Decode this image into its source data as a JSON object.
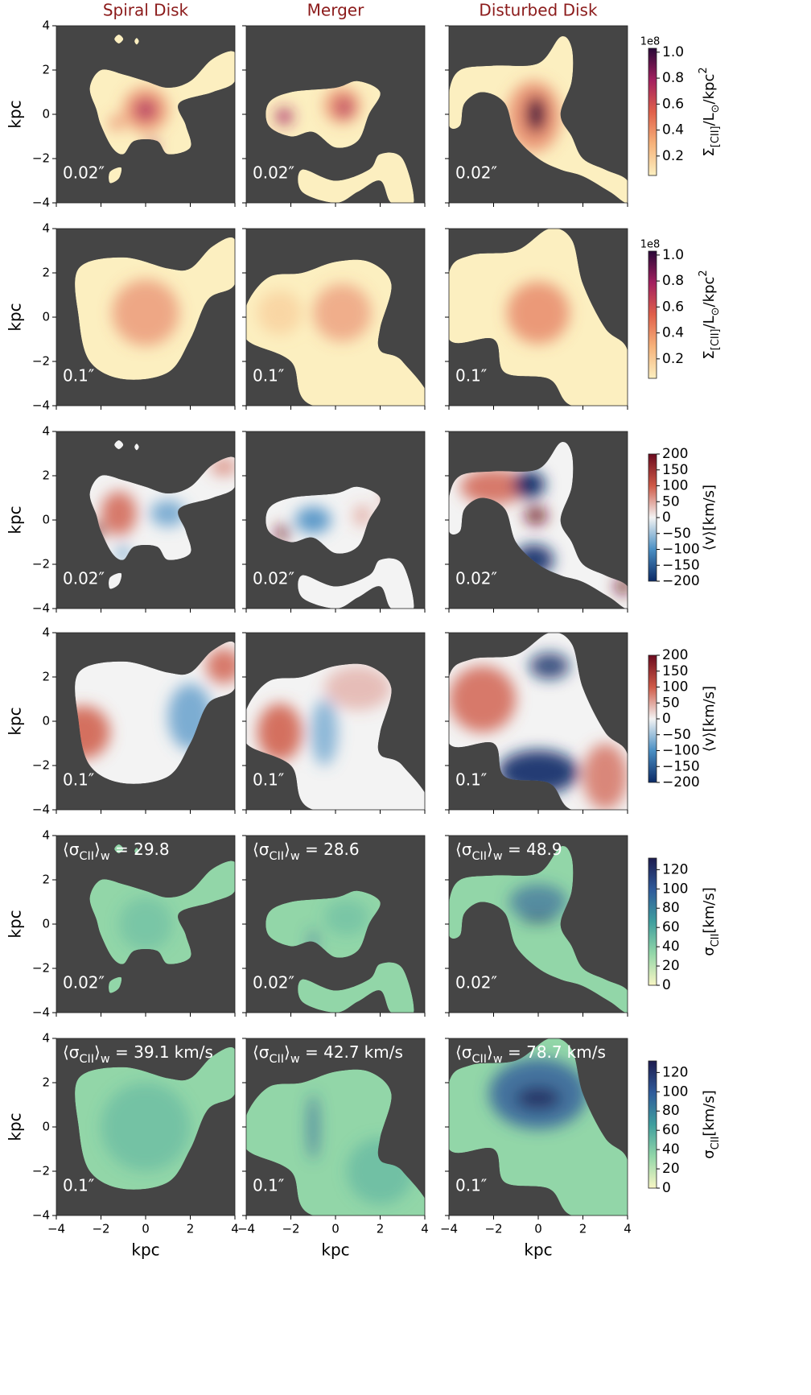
{
  "chart_data": {
    "type": "image-grid",
    "column_titles": [
      "Spiral Disk",
      "Merger",
      "Disturbed Disk"
    ],
    "title_color": "#8b1a1a",
    "background": "#454545",
    "xlabel": "kpc",
    "ylabel": "kpc",
    "xlim": [
      -4,
      4
    ],
    "ylim": [
      -4,
      4
    ],
    "xticks": [
      {
        "value": -4,
        "label": "−4"
      },
      {
        "value": -2,
        "label": "−2"
      },
      0,
      2,
      4
    ],
    "yticks": [
      {
        "value": -4,
        "label": "−4"
      },
      {
        "value": -2,
        "label": "−2"
      },
      0,
      2,
      4
    ],
    "rows": [
      {
        "resolution": "0.02″",
        "colorbar": {
          "label": [
            {
              "text": "Σ"
            },
            {
              "text": "[CII]",
              "sub": true
            },
            {
              "text": "/L"
            },
            {
              "text": "⊙",
              "sub": true
            },
            {
              "text": "/kpc"
            },
            {
              "text": "2",
              "sup": true
            }
          ],
          "offset": "1e8",
          "lim": [
            0.05,
            1.03
          ],
          "ticks": [
            0.2,
            0.4,
            0.6,
            0.8,
            {
              "value": 1,
              "label": "1.0"
            }
          ],
          "colors": [
            "#fcefc0",
            "#f6b27a",
            "#e0604a",
            "#a3205f",
            "#2a0838"
          ]
        }
      },
      {
        "resolution": "0.1″",
        "colorbar": {
          "label": [
            {
              "text": "Σ"
            },
            {
              "text": "[CII]",
              "sub": true
            },
            {
              "text": "/L"
            },
            {
              "text": "⊙",
              "sub": true
            },
            {
              "text": "/kpc"
            },
            {
              "text": "2",
              "sup": true
            }
          ],
          "offset": "1e8",
          "lim": [
            0.05,
            1.03
          ],
          "ticks": [
            0.2,
            0.4,
            0.6,
            0.8,
            {
              "value": 1,
              "label": "1.0"
            }
          ],
          "colors": [
            "#fcefc0",
            "#f6b27a",
            "#e0604a",
            "#a3205f",
            "#2a0838"
          ]
        }
      },
      {
        "resolution": "0.02″",
        "colorbar": {
          "label": [
            {
              "text": "⟨v⟩[km/s]"
            }
          ],
          "lim": [
            -200,
            200
          ],
          "ticks": [
            {
              "value": -200,
              "label": "−200"
            },
            {
              "value": -150,
              "label": "−150"
            },
            {
              "value": -100,
              "label": "−100"
            },
            {
              "value": -50,
              "label": "−50"
            },
            0,
            50,
            100,
            150,
            200
          ],
          "colors": [
            "#0b2a66",
            "#4a8fc4",
            "#f3f3f3",
            "#cf5a47",
            "#6b0a1e"
          ]
        }
      },
      {
        "resolution": "0.1″",
        "colorbar": {
          "label": [
            {
              "text": "⟨v⟩[km/s]"
            }
          ],
          "lim": [
            -200,
            200
          ],
          "ticks": [
            {
              "value": -200,
              "label": "−200"
            },
            {
              "value": -150,
              "label": "−150"
            },
            {
              "value": -100,
              "label": "−100"
            },
            {
              "value": -50,
              "label": "−50"
            },
            0,
            50,
            100,
            150,
            200
          ],
          "colors": [
            "#0b2a66",
            "#4a8fc4",
            "#f3f3f3",
            "#cf5a47",
            "#6b0a1e"
          ]
        }
      },
      {
        "resolution": "0.02″",
        "stat_label": [
          {
            "text": "⟨σ"
          },
          {
            "text": "CII",
            "sub": true
          },
          {
            "text": "⟩"
          },
          {
            "text": "w",
            "sub": true
          },
          {
            "text": " = "
          }
        ],
        "stats": [
          29.8,
          28.6,
          48.9
        ],
        "colorbar": {
          "label": [
            {
              "text": "σ"
            },
            {
              "text": "CII",
              "sub": true
            },
            {
              "text": "[km/s]"
            }
          ],
          "lim": [
            0,
            132
          ],
          "ticks": [
            0,
            20,
            40,
            60,
            80,
            100,
            120
          ],
          "colors": [
            "#f8f6c4",
            "#92d6a8",
            "#3f9e9e",
            "#2f5b9b",
            "#1c1b4e"
          ]
        }
      },
      {
        "resolution": "0.1″",
        "stat_label": [
          {
            "text": "⟨σ"
          },
          {
            "text": "CII",
            "sub": true
          },
          {
            "text": "⟩"
          },
          {
            "text": "w",
            "sub": true
          },
          {
            "text": " = "
          }
        ],
        "stats": [
          39.1,
          42.7,
          78.7
        ],
        "stat_unit": "km/s",
        "colorbar": {
          "label": [
            {
              "text": "σ"
            },
            {
              "text": "CII",
              "sub": true
            },
            {
              "text": "[km/s]"
            }
          ],
          "lim": [
            0,
            132
          ],
          "ticks": [
            0,
            20,
            40,
            60,
            80,
            100,
            120
          ],
          "colors": [
            "#f8f6c4",
            "#92d6a8",
            "#3f9e9e",
            "#2f5b9b",
            "#1c1b4e"
          ]
        }
      }
    ]
  }
}
